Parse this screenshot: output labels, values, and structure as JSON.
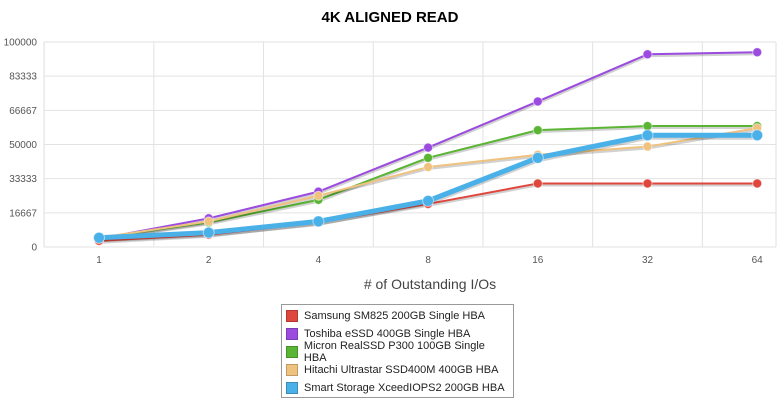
{
  "chart_data": {
    "type": "line",
    "title": "4K ALIGNED READ",
    "xlabel": "# of Outstanding I/Os",
    "ylabel": "",
    "categories": [
      "1",
      "2",
      "4",
      "8",
      "16",
      "32",
      "64"
    ],
    "yticks": [
      "0",
      "16667",
      "33333",
      "50000",
      "66667",
      "83333",
      "100000"
    ],
    "ylim": [
      0,
      100000
    ],
    "grid": true,
    "legend_position": "bottom",
    "series": [
      {
        "name": "Samsung SM825 200GB Single HBA",
        "color": "#e0473c",
        "values": [
          3000,
          6000,
          12000,
          21000,
          31000,
          31000,
          31000
        ]
      },
      {
        "name": "Toshiba eSSD 400GB Single HBA",
        "color": "#9b4be0",
        "values": [
          4000,
          14000,
          27000,
          48500,
          71000,
          94000,
          95000
        ]
      },
      {
        "name": "Micron RealSSD P300 100GB Single HBA",
        "color": "#5ab534",
        "values": [
          4500,
          12000,
          23000,
          43500,
          57000,
          59000,
          59000
        ]
      },
      {
        "name": "Hitachi Ultrastar SSD400M 400GB HBA",
        "color": "#f0c27f",
        "values": [
          4500,
          12500,
          25000,
          39000,
          45000,
          49000,
          58000
        ]
      },
      {
        "name": "Smart Storage XceedIOPS2 200GB HBA",
        "color": "#4ab0e8",
        "values": [
          4500,
          7000,
          12500,
          22500,
          43500,
          54500,
          54500
        ]
      }
    ]
  }
}
